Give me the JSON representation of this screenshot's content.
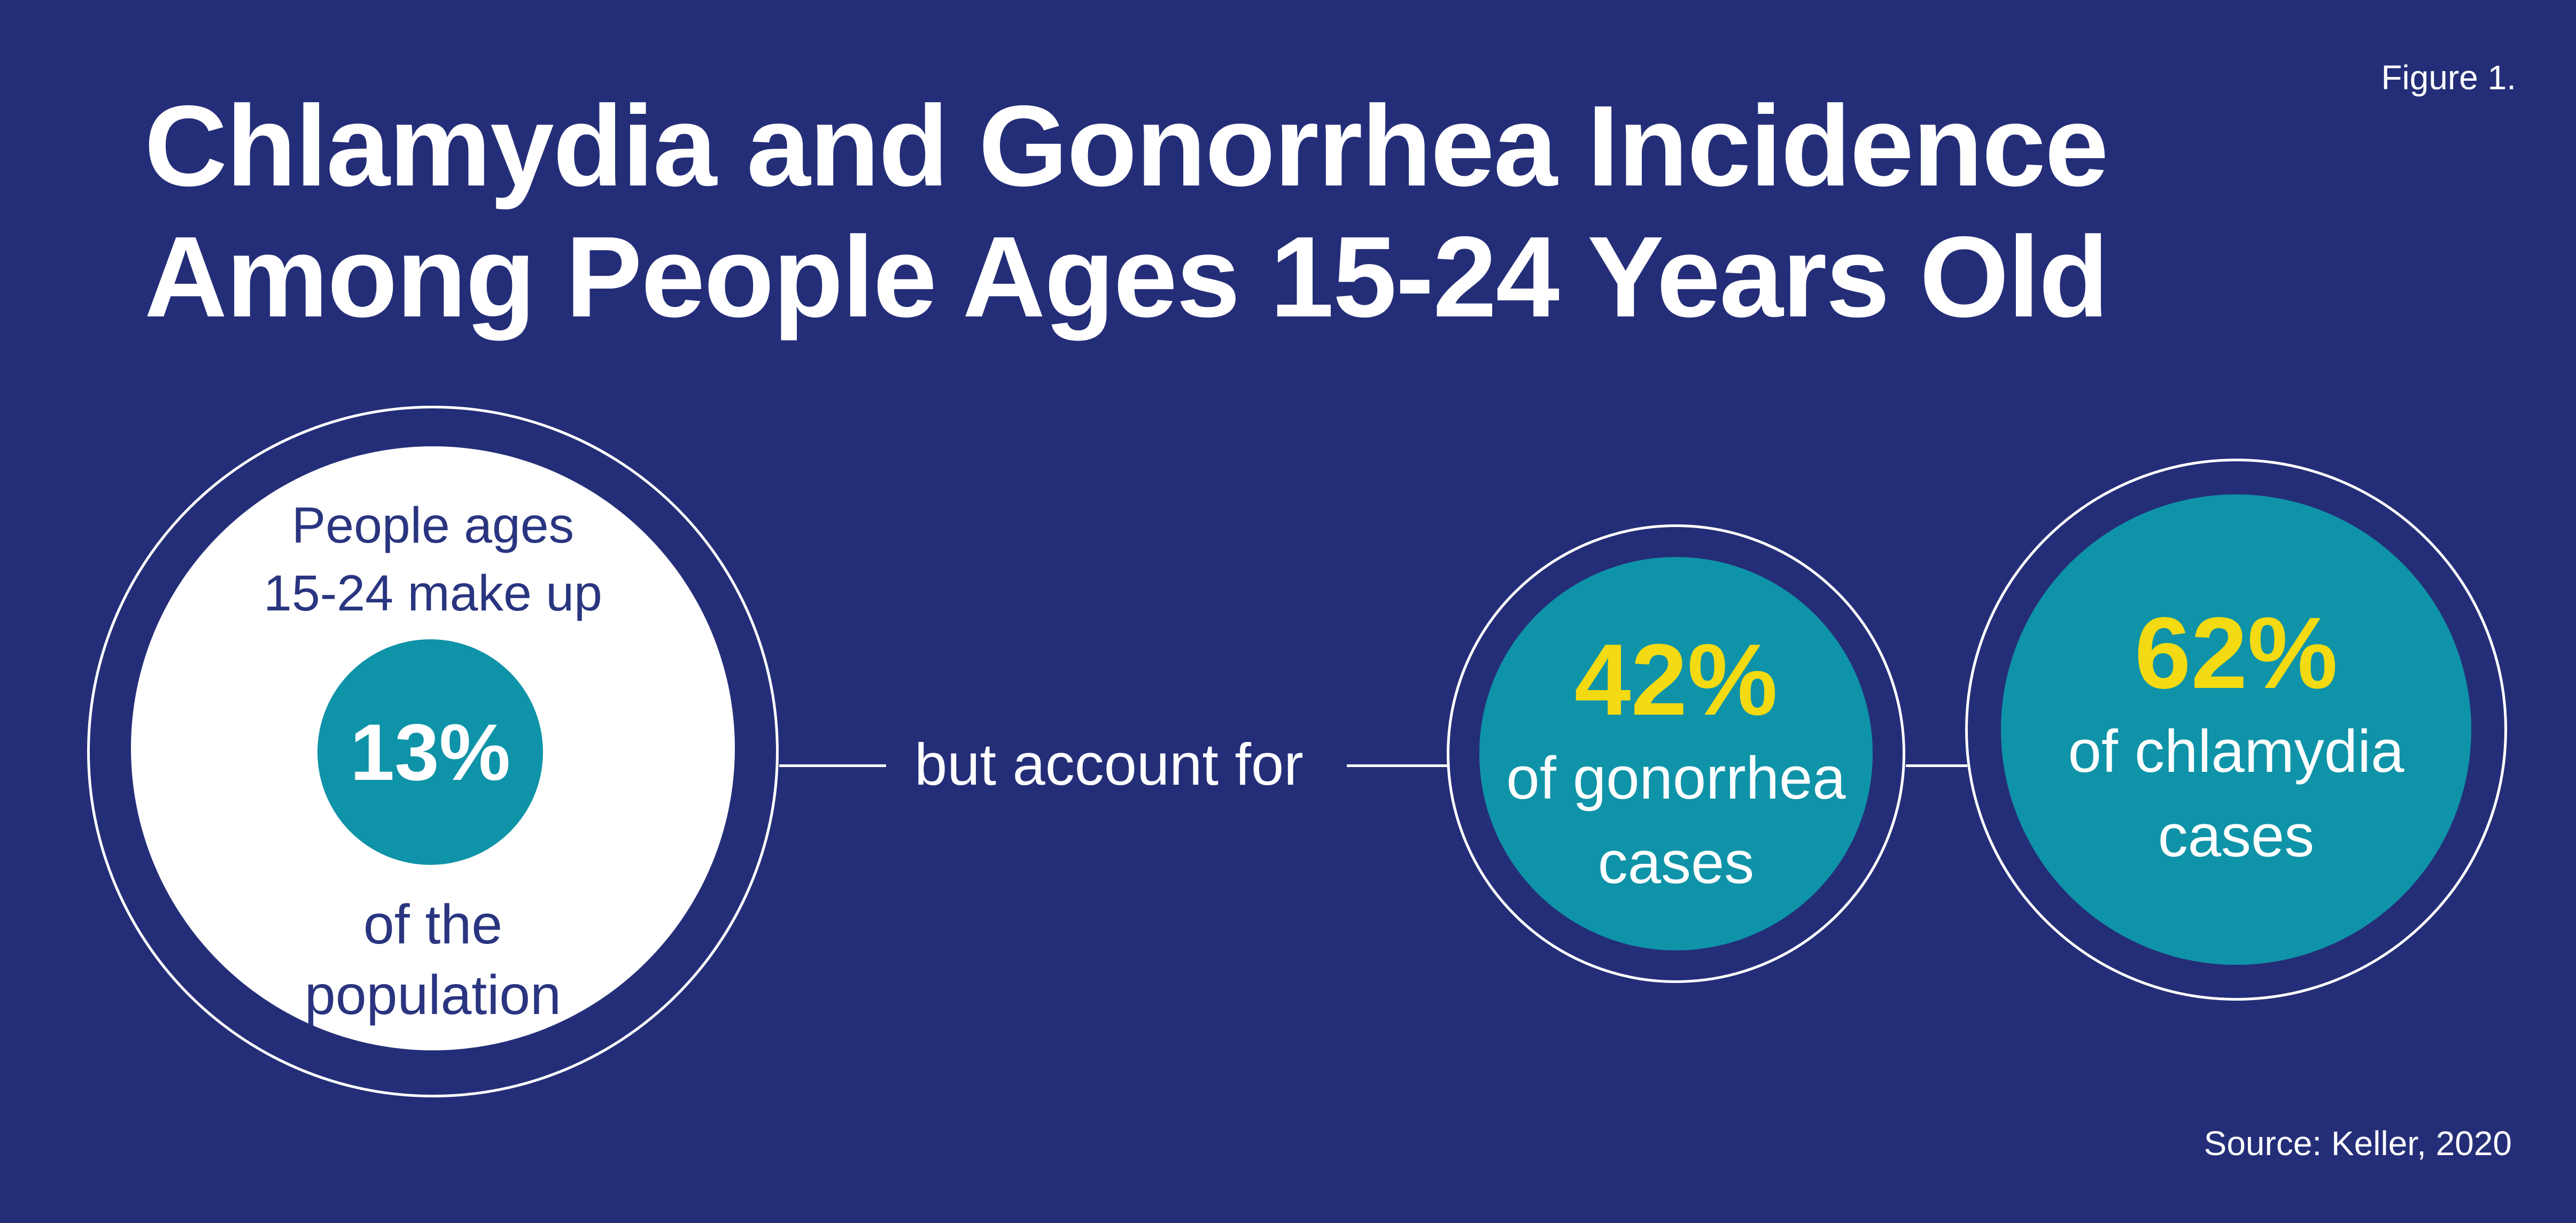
{
  "figure_label": "Figure 1.",
  "title": {
    "line1": "Chlamydia and Gonorrhea Incidence",
    "line2": "Among People Ages 15-24 Years Old"
  },
  "population_circle": {
    "label_top_line1": "People ages",
    "label_top_line2": "15-24 make up",
    "value": "13%",
    "label_bottom_line1": "of the",
    "label_bottom_line2": "population"
  },
  "connector": {
    "text": "but account for"
  },
  "gonorrhea_circle": {
    "value": "42%",
    "label_line1": "of gonorrhea",
    "label_line2": "cases"
  },
  "chlamydia_circle": {
    "value": "62%",
    "label_line1": "of chlamydia",
    "label_line2": "cases"
  },
  "source": "Source: Keller, 2020",
  "colors": {
    "background_navy": "#242E78",
    "teal": "#0F93A8",
    "yellow": "#F3DA12",
    "white": "#FFFFFF",
    "navy_text": "#2A3580"
  },
  "chart_data": {
    "type": "scatter",
    "subtype": "proportional-bubble-infographic",
    "title": "Chlamydia and Gonorrhea Incidence Among People Ages 15-24 Years Old",
    "figure_label": "Figure 1.",
    "annotation": "but account for",
    "source": "Source: Keller, 2020",
    "points": [
      {
        "label": "People ages 15-24 share of the population",
        "value_pct": 13
      },
      {
        "label": "Share of gonorrhea cases among people ages 15-24",
        "value_pct": 42
      },
      {
        "label": "Share of chlamydia cases among people ages 15-24",
        "value_pct": 62
      }
    ],
    "legend_position": "none",
    "grid": false
  }
}
